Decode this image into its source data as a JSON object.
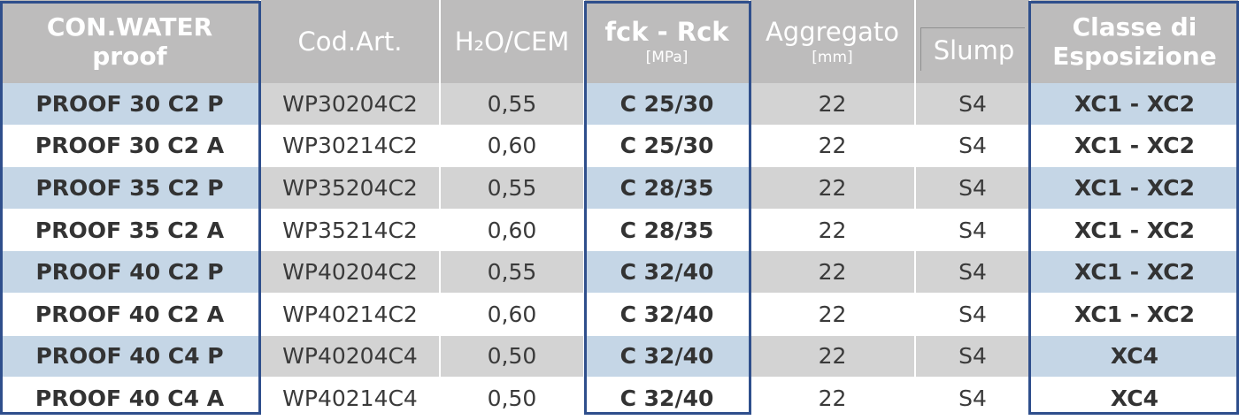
{
  "headers": {
    "product": "CON.WATER proof",
    "code": "Cod.Art.",
    "ratio": "H₂O/CEM",
    "strength": "fck - Rck",
    "strength_unit": "[MPa]",
    "aggregate": "Aggregato",
    "aggregate_unit": "[mm]",
    "slump": "Slump",
    "exposure": "Classe di Esposizione"
  },
  "rows": [
    {
      "product": "PROOF 30 C2 P",
      "code": "WP30204C2",
      "ratio": "0,55",
      "strength": "C 25/30",
      "aggregate": "22",
      "slump": "S4",
      "exposure": "XC1 - XC2"
    },
    {
      "product": "PROOF 30 C2 A",
      "code": "WP30214C2",
      "ratio": "0,60",
      "strength": "C 25/30",
      "aggregate": "22",
      "slump": "S4",
      "exposure": "XC1 - XC2"
    },
    {
      "product": "PROOF 35 C2 P",
      "code": "WP35204C2",
      "ratio": "0,55",
      "strength": "C 28/35",
      "aggregate": "22",
      "slump": "S4",
      "exposure": "XC1 - XC2"
    },
    {
      "product": "PROOF 35 C2 A",
      "code": "WP35214C2",
      "ratio": "0,60",
      "strength": "C 28/35",
      "aggregate": "22",
      "slump": "S4",
      "exposure": "XC1 - XC2"
    },
    {
      "product": "PROOF 40 C2 P",
      "code": "WP40204C2",
      "ratio": "0,55",
      "strength": "C 32/40",
      "aggregate": "22",
      "slump": "S4",
      "exposure": "XC1 - XC2"
    },
    {
      "product": "PROOF 40 C2 A",
      "code": "WP40214C2",
      "ratio": "0,60",
      "strength": "C 32/40",
      "aggregate": "22",
      "slump": "S4",
      "exposure": "XC1 - XC2"
    },
    {
      "product": "PROOF 40 C4 P",
      "code": "WP40204C4",
      "ratio": "0,50",
      "strength": "C 32/40",
      "aggregate": "22",
      "slump": "S4",
      "exposure": "XC4"
    },
    {
      "product": "PROOF 40 C4 A",
      "code": "WP40214C4",
      "ratio": "0,50",
      "strength": "C 32/40",
      "aggregate": "22",
      "slump": "S4",
      "exposure": "XC4"
    }
  ],
  "colors": {
    "header_bg": "#bdbcbc",
    "row_blue": "#c5d6e6",
    "row_grey": "#d3d3d3",
    "frame": "#2f4f8c"
  }
}
